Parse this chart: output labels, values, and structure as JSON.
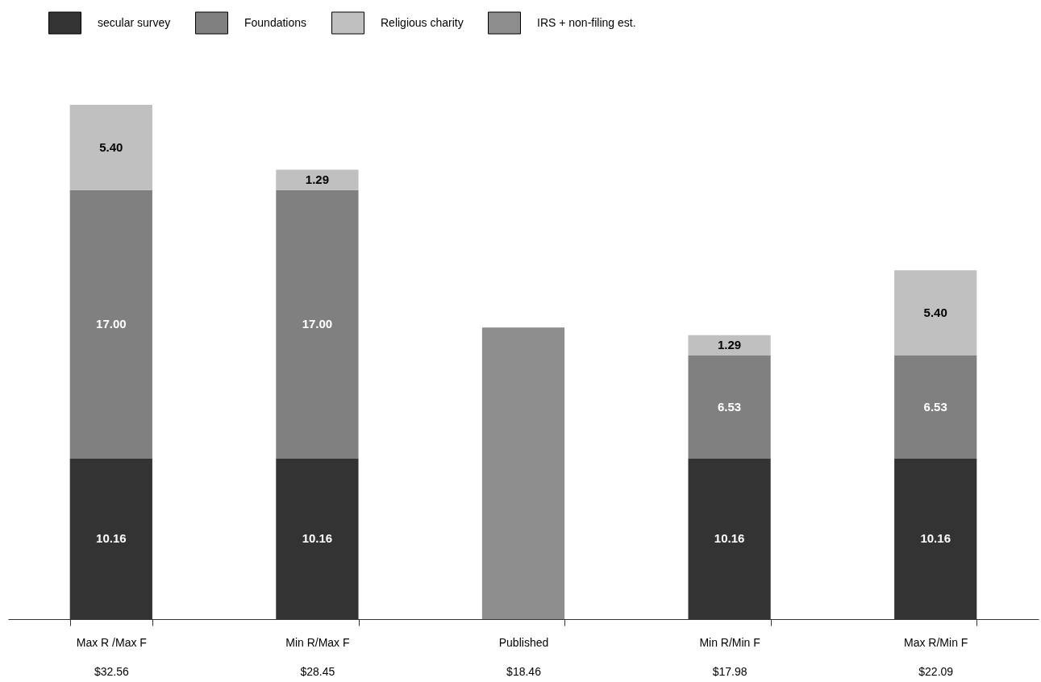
{
  "chart_data": {
    "type": "bar",
    "stacked": true,
    "legend": "top",
    "categories": [
      "Max R /Max F\n$32.56",
      "Min R/Max F\n$28.45",
      "Published\n$18.46",
      "Min R/Min F\n$17.98",
      "Max R/Min F\n$22.09"
    ],
    "series": [
      {
        "name": "secular survey",
        "color": "#333333",
        "values": [
          10.16,
          10.16,
          null,
          10.16,
          10.16
        ],
        "value_labels": [
          "10.16",
          "10.16",
          null,
          "10.16",
          "10.16"
        ]
      },
      {
        "name": "Foundations",
        "color": "#808080",
        "values": [
          17.0,
          17.0,
          null,
          6.53,
          6.53
        ],
        "value_labels": [
          "17.00",
          "17.00",
          null,
          "6.53",
          "6.53"
        ]
      },
      {
        "name": "Religious charity",
        "color": "#c0c0c0",
        "values": [
          5.4,
          1.29,
          null,
          1.29,
          5.4
        ],
        "value_labels": [
          "5.40",
          "1.29",
          null,
          "1.29",
          "5.40"
        ]
      },
      {
        "name": "IRS + non-filing est.",
        "color": "#8d8d8d",
        "values": [
          null,
          null,
          18.46,
          null,
          null
        ]
      }
    ]
  }
}
